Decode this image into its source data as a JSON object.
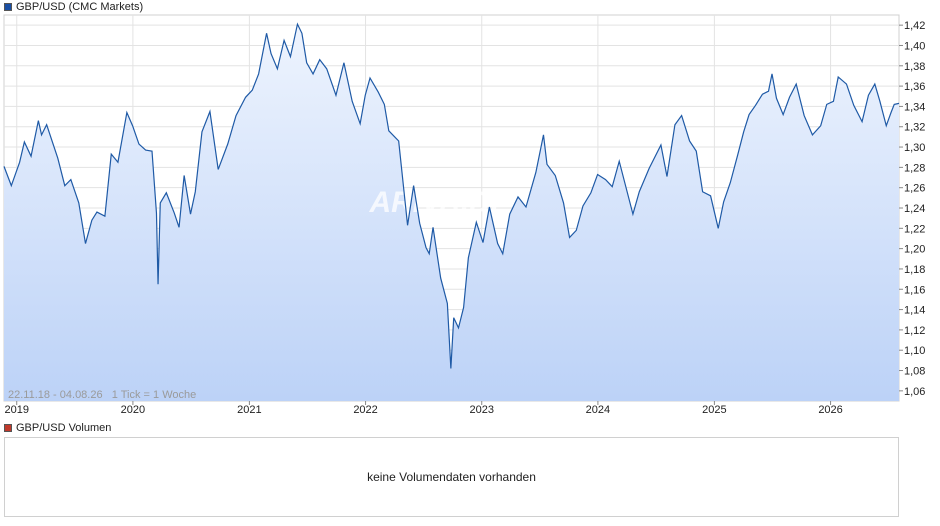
{
  "price_legend": {
    "label": "GBP/USD (CMC Markets)",
    "color": "#1a4fa3"
  },
  "volume_legend": {
    "label": "GBP/USD Volumen",
    "color": "#c0392b"
  },
  "watermark": "ARIVA.DE",
  "range_label": "22.11.18 - 04.08.26   1 Tick = 1 Woche",
  "volume_message": "keine Volumendaten vorhanden",
  "chart_data": {
    "type": "area",
    "title": "",
    "xlabel": "",
    "ylabel": "",
    "line_color": "#1f5aa6",
    "fill_top": "#eef4fe",
    "fill_bottom": "#bcd2f7",
    "ylim": [
      1.05,
      1.43
    ],
    "y_ticks": [
      "1,06",
      "1,08",
      "1,10",
      "1,12",
      "1,14",
      "1,16",
      "1,18",
      "1,20",
      "1,22",
      "1,24",
      "1,26",
      "1,28",
      "1,30",
      "1,32",
      "1,34",
      "1,36",
      "1,38",
      "1,40",
      "1,42"
    ],
    "x_range": [
      "2018-11-22",
      "2026-08-04"
    ],
    "x_ticks": [
      {
        "label": "2019",
        "date": "2019-01-01"
      },
      {
        "label": "2020",
        "date": "2020-01-01"
      },
      {
        "label": "2021",
        "date": "2021-01-01"
      },
      {
        "label": "2022",
        "date": "2022-01-01"
      },
      {
        "label": "2023",
        "date": "2023-01-01"
      },
      {
        "label": "2024",
        "date": "2024-01-01"
      },
      {
        "label": "2025",
        "date": "2025-01-01"
      },
      {
        "label": "2026",
        "date": "2026-01-01"
      }
    ],
    "grid": true,
    "series": [
      {
        "points": [
          [
            "2018-11-22",
            1.281
          ],
          [
            "2018-12-15",
            1.262
          ],
          [
            "2019-01-10",
            1.285
          ],
          [
            "2019-01-25",
            1.305
          ],
          [
            "2019-02-15",
            1.291
          ],
          [
            "2019-03-10",
            1.326
          ],
          [
            "2019-03-20",
            1.312
          ],
          [
            "2019-04-05",
            1.322
          ],
          [
            "2019-05-10",
            1.289
          ],
          [
            "2019-06-01",
            1.262
          ],
          [
            "2019-06-20",
            1.268
          ],
          [
            "2019-07-15",
            1.245
          ],
          [
            "2019-08-05",
            1.205
          ],
          [
            "2019-08-25",
            1.228
          ],
          [
            "2019-09-10",
            1.236
          ],
          [
            "2019-10-05",
            1.232
          ],
          [
            "2019-10-25",
            1.293
          ],
          [
            "2019-11-15",
            1.285
          ],
          [
            "2019-12-13",
            1.334
          ],
          [
            "2019-12-31",
            1.321
          ],
          [
            "2020-01-20",
            1.303
          ],
          [
            "2020-02-10",
            1.297
          ],
          [
            "2020-03-01",
            1.296
          ],
          [
            "2020-03-15",
            1.235
          ],
          [
            "2020-03-20",
            1.165
          ],
          [
            "2020-03-27",
            1.245
          ],
          [
            "2020-04-15",
            1.255
          ],
          [
            "2020-05-10",
            1.235
          ],
          [
            "2020-05-25",
            1.221
          ],
          [
            "2020-06-10",
            1.272
          ],
          [
            "2020-06-30",
            1.234
          ],
          [
            "2020-07-15",
            1.256
          ],
          [
            "2020-08-05",
            1.315
          ],
          [
            "2020-08-30",
            1.335
          ],
          [
            "2020-09-25",
            1.278
          ],
          [
            "2020-10-25",
            1.303
          ],
          [
            "2020-11-20",
            1.331
          ],
          [
            "2020-12-20",
            1.349
          ],
          [
            "2021-01-10",
            1.356
          ],
          [
            "2021-01-30",
            1.372
          ],
          [
            "2021-02-24",
            1.412
          ],
          [
            "2021-03-10",
            1.392
          ],
          [
            "2021-03-30",
            1.377
          ],
          [
            "2021-04-20",
            1.405
          ],
          [
            "2021-05-10",
            1.389
          ],
          [
            "2021-06-01",
            1.421
          ],
          [
            "2021-06-15",
            1.412
          ],
          [
            "2021-06-30",
            1.383
          ],
          [
            "2021-07-20",
            1.372
          ],
          [
            "2021-08-10",
            1.386
          ],
          [
            "2021-09-01",
            1.377
          ],
          [
            "2021-09-30",
            1.351
          ],
          [
            "2021-10-25",
            1.383
          ],
          [
            "2021-11-20",
            1.345
          ],
          [
            "2021-12-15",
            1.323
          ],
          [
            "2021-12-31",
            1.351
          ],
          [
            "2022-01-15",
            1.368
          ],
          [
            "2022-02-10",
            1.354
          ],
          [
            "2022-03-01",
            1.342
          ],
          [
            "2022-03-15",
            1.316
          ],
          [
            "2022-04-15",
            1.306
          ],
          [
            "2022-05-13",
            1.223
          ],
          [
            "2022-06-01",
            1.262
          ],
          [
            "2022-06-20",
            1.225
          ],
          [
            "2022-07-10",
            1.201
          ],
          [
            "2022-07-20",
            1.195
          ],
          [
            "2022-08-01",
            1.221
          ],
          [
            "2022-08-25",
            1.171
          ],
          [
            "2022-09-15",
            1.146
          ],
          [
            "2022-09-26",
            1.082
          ],
          [
            "2022-10-05",
            1.132
          ],
          [
            "2022-10-20",
            1.122
          ],
          [
            "2022-11-05",
            1.142
          ],
          [
            "2022-11-20",
            1.191
          ],
          [
            "2022-12-15",
            1.226
          ],
          [
            "2023-01-05",
            1.206
          ],
          [
            "2023-01-25",
            1.241
          ],
          [
            "2023-02-20",
            1.205
          ],
          [
            "2023-03-08",
            1.195
          ],
          [
            "2023-03-30",
            1.234
          ],
          [
            "2023-04-25",
            1.251
          ],
          [
            "2023-05-20",
            1.241
          ],
          [
            "2023-06-20",
            1.275
          ],
          [
            "2023-07-14",
            1.312
          ],
          [
            "2023-07-25",
            1.283
          ],
          [
            "2023-08-20",
            1.272
          ],
          [
            "2023-09-15",
            1.245
          ],
          [
            "2023-10-04",
            1.211
          ],
          [
            "2023-10-25",
            1.218
          ],
          [
            "2023-11-15",
            1.242
          ],
          [
            "2023-12-10",
            1.255
          ],
          [
            "2023-12-31",
            1.273
          ],
          [
            "2024-01-25",
            1.268
          ],
          [
            "2024-02-15",
            1.261
          ],
          [
            "2024-03-08",
            1.286
          ],
          [
            "2024-04-20",
            1.234
          ],
          [
            "2024-05-10",
            1.256
          ],
          [
            "2024-06-10",
            1.279
          ],
          [
            "2024-07-17",
            1.302
          ],
          [
            "2024-08-05",
            1.271
          ],
          [
            "2024-08-30",
            1.322
          ],
          [
            "2024-09-20",
            1.331
          ],
          [
            "2024-10-15",
            1.306
          ],
          [
            "2024-11-05",
            1.296
          ],
          [
            "2024-11-25",
            1.256
          ],
          [
            "2024-12-20",
            1.252
          ],
          [
            "2025-01-13",
            1.22
          ],
          [
            "2025-01-30",
            1.246
          ],
          [
            "2025-02-20",
            1.265
          ],
          [
            "2025-03-15",
            1.292
          ],
          [
            "2025-04-03",
            1.315
          ],
          [
            "2025-04-20",
            1.332
          ],
          [
            "2025-05-10",
            1.341
          ],
          [
            "2025-06-01",
            1.352
          ],
          [
            "2025-06-20",
            1.355
          ],
          [
            "2025-07-01",
            1.372
          ],
          [
            "2025-07-15",
            1.348
          ],
          [
            "2025-08-05",
            1.332
          ],
          [
            "2025-08-25",
            1.349
          ],
          [
            "2025-09-15",
            1.362
          ],
          [
            "2025-10-10",
            1.331
          ],
          [
            "2025-11-05",
            1.312
          ],
          [
            "2025-12-01",
            1.321
          ],
          [
            "2025-12-20",
            1.342
          ],
          [
            "2026-01-10",
            1.345
          ],
          [
            "2026-01-25",
            1.369
          ],
          [
            "2026-02-20",
            1.362
          ],
          [
            "2026-03-15",
            1.341
          ],
          [
            "2026-04-10",
            1.325
          ],
          [
            "2026-04-30",
            1.351
          ],
          [
            "2026-05-20",
            1.362
          ],
          [
            "2026-06-05",
            1.345
          ],
          [
            "2026-06-25",
            1.321
          ],
          [
            "2026-07-10",
            1.334
          ],
          [
            "2026-07-20",
            1.342
          ],
          [
            "2026-08-04",
            1.343
          ]
        ]
      }
    ]
  }
}
